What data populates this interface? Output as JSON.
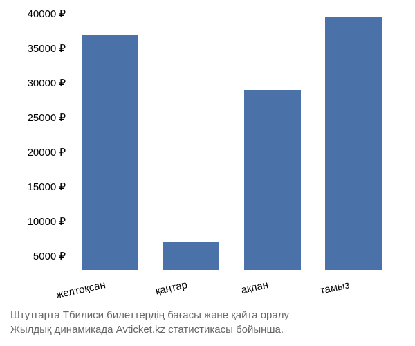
{
  "chart": {
    "type": "bar",
    "categories": [
      "желтоқсан",
      "қаңтар",
      "ақпан",
      "тамыз"
    ],
    "values": [
      37000,
      7000,
      29000,
      39500
    ],
    "bar_color": "#4a72a8",
    "background_color": "#ffffff",
    "y_min": 3000,
    "y_max": 40000,
    "y_ticks": [
      5000,
      10000,
      15000,
      20000,
      25000,
      30000,
      35000,
      40000
    ],
    "y_tick_labels": [
      "5000 ₽",
      "10000 ₽",
      "15000 ₽",
      "20000 ₽",
      "25000 ₽",
      "30000 ₽",
      "35000 ₽",
      "40000 ₽"
    ],
    "tick_font_size": 15,
    "tick_color": "#000000",
    "x_label_rotation_deg": 12,
    "bar_width_ratio": 0.7,
    "caption_line1": "Штутгарта Тбилиси билеттердің бағасы және қайта оралу",
    "caption_line2": "Жылдық динамикада Avticket.kz статистикасы бойынша.",
    "caption_font_size": 15,
    "caption_color": "#666666"
  }
}
